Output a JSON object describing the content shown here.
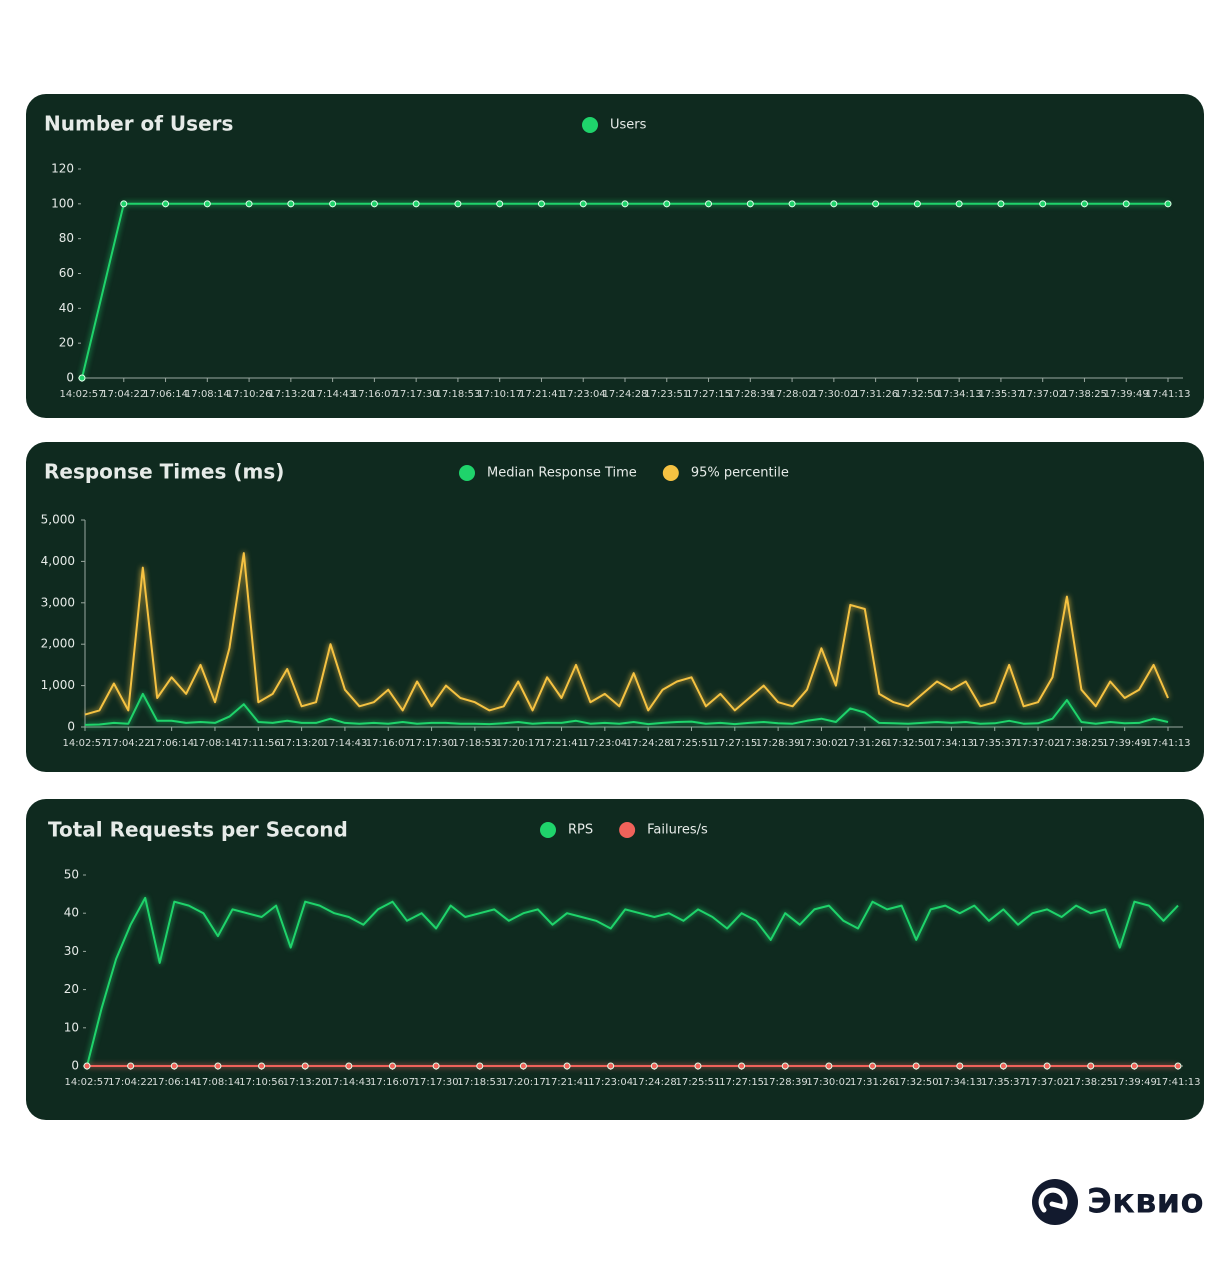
{
  "chart_data": [
    {
      "type": "line",
      "title": "Number of Users",
      "categories": [
        "14:02:57",
        "17:04:22",
        "17:06:14",
        "17:08:14",
        "17:10:26",
        "17:13:20",
        "17:14:43",
        "17:16:07",
        "17:17:30",
        "17:18:53",
        "17:10:17",
        "17:21:41",
        "17:23:04",
        "17:24:28",
        "17:23:51",
        "17:27:15",
        "17:28:39",
        "17:28:02",
        "17:30:02",
        "17:31:26",
        "17:32:50",
        "17:34:13",
        "17:35:37",
        "17:37:02",
        "17:38:25",
        "17:39:49",
        "17:41:13"
      ],
      "series": [
        {
          "name": "Users",
          "color": "#1fd36b",
          "markers": true,
          "values": [
            0,
            100,
            100,
            100,
            100,
            100,
            100,
            100,
            100,
            100,
            100,
            100,
            100,
            100,
            100,
            100,
            100,
            100,
            100,
            100,
            100,
            100,
            100,
            100,
            100,
            100,
            100
          ]
        }
      ],
      "ylim": [
        0,
        120
      ],
      "yticks": [
        0,
        20,
        40,
        60,
        80,
        100,
        120
      ]
    },
    {
      "type": "line",
      "title": "Response Times (ms)",
      "categories": [
        "14:02:57",
        null,
        null,
        "17:04:22",
        null,
        null,
        "17:06:14",
        null,
        null,
        "17:08:14",
        null,
        null,
        "17:11:56",
        null,
        null,
        "17:13:20",
        null,
        null,
        "17:14:43",
        null,
        null,
        "17:16:07",
        null,
        null,
        "17:17:30",
        null,
        null,
        "17:18:53",
        null,
        null,
        "17:20:17",
        null,
        null,
        "17:21:41",
        null,
        null,
        "17:23:04",
        null,
        null,
        "17:24:28",
        null,
        null,
        "17:25:51",
        null,
        null,
        "17:27:15",
        null,
        null,
        "17:28:39",
        null,
        null,
        "17:30:02",
        null,
        null,
        "17:31:26",
        null,
        null,
        "17:32:50",
        null,
        null,
        "17:34:13",
        null,
        null,
        "17:35:37",
        null,
        null,
        "17:37:02",
        null,
        null,
        "17:38:25",
        null,
        null,
        "17:39:49",
        null,
        null,
        "17:41:13"
      ],
      "series": [
        {
          "name": "Median Response Time",
          "color": "#1fd36b",
          "values": [
            50,
            60,
            100,
            80,
            800,
            150,
            150,
            100,
            120,
            100,
            250,
            550,
            120,
            100,
            150,
            100,
            100,
            200,
            100,
            80,
            100,
            80,
            120,
            80,
            100,
            100,
            80,
            80,
            70,
            90,
            120,
            80,
            100,
            100,
            150,
            80,
            100,
            80,
            120,
            70,
            100,
            120,
            130,
            80,
            100,
            70,
            100,
            120,
            90,
            80,
            150,
            200,
            120,
            450,
            350,
            100,
            90,
            80,
            100,
            120,
            100,
            120,
            80,
            90,
            150,
            80,
            90,
            200,
            650,
            120,
            80,
            120,
            90,
            100,
            200,
            120
          ]
        },
        {
          "name": "95% percentile",
          "color": "#f5c242",
          "values": [
            300,
            400,
            1050,
            400,
            3850,
            700,
            1200,
            800,
            1500,
            600,
            1900,
            4200,
            600,
            800,
            1400,
            500,
            600,
            2000,
            900,
            500,
            600,
            900,
            400,
            1100,
            500,
            1000,
            700,
            600,
            400,
            500,
            1100,
            400,
            1200,
            700,
            1500,
            600,
            800,
            500,
            1300,
            400,
            900,
            1100,
            1200,
            500,
            800,
            400,
            700,
            1000,
            600,
            500,
            900,
            1900,
            1000,
            2950,
            2850,
            800,
            600,
            500,
            800,
            1100,
            900,
            1100,
            500,
            600,
            1500,
            500,
            600,
            1200,
            3150,
            900,
            500,
            1100,
            700,
            900,
            1500,
            700
          ]
        }
      ],
      "ylim": [
        0,
        5000
      ],
      "yticks": [
        0,
        {
          "value": 1000,
          "label": "1,000"
        },
        {
          "value": 2000,
          "label": "2,000"
        },
        {
          "value": 3000,
          "label": "3,000"
        },
        {
          "value": 4000,
          "label": "4,000"
        },
        {
          "value": 5000,
          "label": "5,000"
        }
      ]
    },
    {
      "type": "line",
      "title": "Total Requests per Second",
      "categories": [
        "14:02:57",
        null,
        null,
        "17:04:22",
        null,
        null,
        "17:06:14",
        null,
        null,
        "17:08:14",
        null,
        null,
        "17:10:56",
        null,
        null,
        "17:13:20",
        null,
        null,
        "17:14:43",
        null,
        null,
        "17:16:07",
        null,
        null,
        "17:17:30",
        null,
        null,
        "17:18:53",
        null,
        null,
        "17:20:17",
        null,
        null,
        "17:21:41",
        null,
        null,
        "17:23:04",
        null,
        null,
        "17:24:28",
        null,
        null,
        "17:25:51",
        null,
        null,
        "17:27:15",
        null,
        null,
        "17:28:39",
        null,
        null,
        "17:30:02",
        null,
        null,
        "17:31:26",
        null,
        null,
        "17:32:50",
        null,
        null,
        "17:34:13",
        null,
        null,
        "17:35:37",
        null,
        null,
        "17:37:02",
        null,
        null,
        "17:38:25",
        null,
        null,
        "17:39:49",
        null,
        null,
        "17:41:13"
      ],
      "series": [
        {
          "name": "RPS",
          "color": "#1fd36b",
          "values": [
            0,
            15,
            28,
            37,
            44,
            27,
            43,
            42,
            40,
            34,
            41,
            40,
            39,
            42,
            31,
            43,
            42,
            40,
            39,
            37,
            41,
            43,
            38,
            40,
            36,
            42,
            39,
            40,
            41,
            38,
            40,
            41,
            37,
            40,
            39,
            38,
            36,
            41,
            40,
            39,
            40,
            38,
            41,
            39,
            36,
            40,
            38,
            33,
            40,
            37,
            41,
            42,
            38,
            36,
            43,
            41,
            42,
            33,
            41,
            42,
            40,
            42,
            38,
            41,
            37,
            40,
            41,
            39,
            42,
            40,
            41,
            31,
            43,
            42,
            38,
            42
          ]
        },
        {
          "name": "Failures/s",
          "color": "#f0625a",
          "markers": true,
          "values": [
            0,
            0,
            0,
            0,
            0,
            0,
            0,
            0,
            0,
            0,
            0,
            0,
            0,
            0,
            0,
            0,
            0,
            0,
            0,
            0,
            0,
            0,
            0,
            0,
            0,
            0,
            0,
            0,
            0,
            0,
            0,
            0,
            0,
            0,
            0,
            0,
            0,
            0,
            0,
            0,
            0,
            0,
            0,
            0,
            0,
            0,
            0,
            0,
            0,
            0,
            0,
            0,
            0,
            0,
            0,
            0,
            0,
            0,
            0,
            0,
            0,
            0,
            0,
            0,
            0,
            0,
            0,
            0,
            0,
            0,
            0,
            0,
            0,
            0,
            0,
            0
          ]
        }
      ],
      "ylim": [
        0,
        50
      ],
      "yticks": [
        0,
        10,
        20,
        30,
        40,
        50
      ]
    }
  ],
  "brand": "Эквио"
}
